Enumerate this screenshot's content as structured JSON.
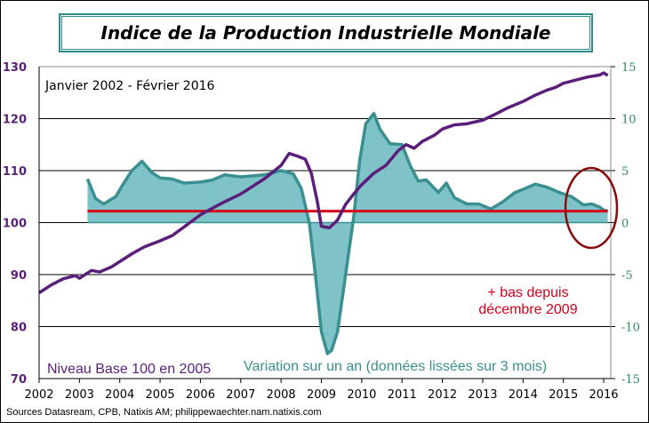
{
  "chart_data": {
    "type": "line",
    "title": "Indice de la Production Industrielle Mondiale",
    "subtitle": "Janvier 2002 - Février 2016",
    "source": "Sources Datasream, CPB,  Natixis AM; philippewaechter.nam.natixis.com",
    "x_ticks": [
      "2002",
      "2003",
      "2004",
      "2005",
      "2006",
      "2007",
      "2008",
      "2009",
      "2010",
      "2011",
      "2012",
      "2013",
      "2014",
      "2015",
      "2016"
    ],
    "y_left": {
      "range": [
        70,
        130
      ],
      "ticks": [
        70,
        80,
        90,
        100,
        110,
        120,
        130
      ],
      "color": "#5a1f7a"
    },
    "y_right": {
      "range": [
        -15,
        15
      ],
      "ticks": [
        -15,
        -10,
        -5,
        0,
        5,
        10,
        15
      ],
      "color": "#2e8b57"
    },
    "grid": true,
    "series": [
      {
        "name": "Niveau Base 100 en 2005",
        "axis": "left",
        "type": "line",
        "color": "#5a1f7a",
        "x": [
          2002.0,
          2002.3,
          2002.6,
          2002.9,
          2003.0,
          2003.3,
          2003.5,
          2003.8,
          2004.0,
          2004.3,
          2004.6,
          2005.0,
          2005.3,
          2005.6,
          2006.0,
          2006.3,
          2006.6,
          2007.0,
          2007.3,
          2007.6,
          2008.0,
          2008.2,
          2008.4,
          2008.6,
          2008.75,
          2008.9,
          2009.0,
          2009.2,
          2009.4,
          2009.6,
          2009.8,
          2010.0,
          2010.3,
          2010.6,
          2010.9,
          2011.1,
          2011.3,
          2011.5,
          2011.8,
          2012.0,
          2012.3,
          2012.6,
          2013.0,
          2013.3,
          2013.6,
          2014.0,
          2014.3,
          2014.6,
          2014.8,
          2015.0,
          2015.3,
          2015.6,
          2015.9,
          2016.0,
          2016.1
        ],
        "y": [
          86.5,
          88,
          89.2,
          89.8,
          89.3,
          90.8,
          90.5,
          91.5,
          92.5,
          94,
          95.3,
          96.5,
          97.5,
          99.2,
          101.5,
          102.8,
          104,
          105.5,
          107,
          108.5,
          111,
          113.3,
          112.8,
          112.2,
          109.5,
          104,
          99.3,
          99,
          100.5,
          103.5,
          105.5,
          107.3,
          109.5,
          111,
          113.8,
          115,
          114.3,
          115.6,
          116.8,
          118,
          118.8,
          119,
          119.7,
          120.8,
          122,
          123.3,
          124.5,
          125.5,
          126,
          126.8,
          127.4,
          128,
          128.4,
          128.8,
          128.3
        ]
      },
      {
        "name": "Variation sur un an (données lissées sur 3 mois)",
        "axis": "right",
        "type": "area",
        "color": "#3a9090",
        "fill": "#7fc3c8",
        "x": [
          2003.2,
          2003.4,
          2003.6,
          2003.9,
          2004.1,
          2004.3,
          2004.55,
          2004.8,
          2005.0,
          2005.3,
          2005.6,
          2006.0,
          2006.3,
          2006.6,
          2007.0,
          2007.3,
          2007.6,
          2008.0,
          2008.3,
          2008.5,
          2008.7,
          2008.85,
          2009.0,
          2009.15,
          2009.25,
          2009.4,
          2009.6,
          2009.8,
          2009.95,
          2010.1,
          2010.3,
          2010.45,
          2010.7,
          2011.0,
          2011.2,
          2011.4,
          2011.6,
          2011.9,
          2012.1,
          2012.3,
          2012.6,
          2012.9,
          2013.2,
          2013.5,
          2013.8,
          2014.0,
          2014.3,
          2014.6,
          2014.9,
          2015.2,
          2015.5,
          2015.7,
          2015.9,
          2016.0,
          2016.1
        ],
        "y": [
          4.2,
          2.3,
          1.8,
          2.5,
          3.8,
          5.0,
          5.9,
          4.8,
          4.3,
          4.2,
          3.8,
          3.9,
          4.1,
          4.6,
          4.4,
          4.5,
          4.6,
          5.0,
          4.7,
          3.3,
          0,
          -5,
          -10.5,
          -12.6,
          -12.3,
          -10.5,
          -5,
          0.5,
          6,
          9.5,
          10.5,
          9,
          7.6,
          7.5,
          5.5,
          4.0,
          4.1,
          2.9,
          3.8,
          2.4,
          1.8,
          1.8,
          1.3,
          2.0,
          2.9,
          3.2,
          3.7,
          3.4,
          2.9,
          2.5,
          1.7,
          1.8,
          1.5,
          1.2,
          1.1
        ]
      }
    ],
    "reference_line": {
      "axis": "right",
      "value": 1.1,
      "color": "#d4001a"
    },
    "annotations": {
      "level_label": "Niveau Base 100 en 2005",
      "variation_label": "Variation sur un an (données lissées sur 3 mois)",
      "low_note_line1": "+ bas depuis",
      "low_note_line2": "décembre 2009",
      "low_note_color": "#d4001a",
      "circle_color": "#8b0a0a"
    }
  }
}
